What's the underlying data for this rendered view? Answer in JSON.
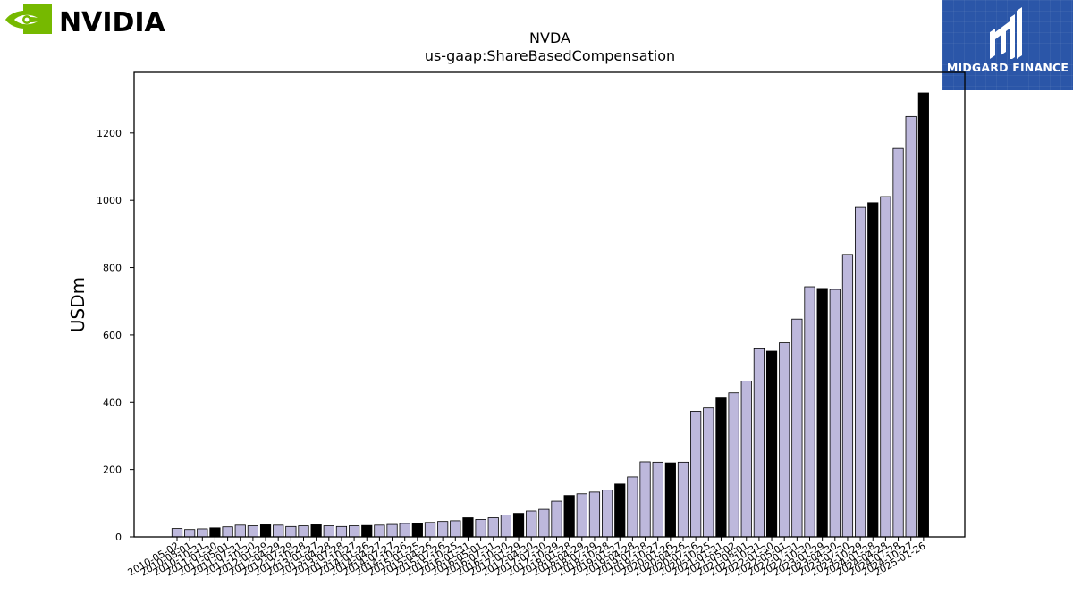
{
  "header": {
    "left_logo": "NVIDIA",
    "right_logo": "MIDGARD FINANCE"
  },
  "colors": {
    "bar_default": "#bdb8dc",
    "bar_highlight": "#000000",
    "nvidia_green": "#76b900",
    "midgard_blue": "#2b56a8"
  },
  "chart_data": {
    "type": "bar",
    "title": "NVDA",
    "subtitle": "us-gaap:ShareBasedCompensation",
    "xlabel": "",
    "ylabel": "USDm",
    "ylim": [
      0,
      1380
    ],
    "yticks": [
      0,
      200,
      400,
      600,
      800,
      1000,
      1200
    ],
    "categories": [
      "2010-05-02",
      "2010-08-01",
      "2010-10-31",
      "2011-01-30",
      "2011-05-01",
      "2011-07-31",
      "2011-10-30",
      "2012-01-29",
      "2012-04-29",
      "2012-07-29",
      "2012-10-28",
      "2013-01-27",
      "2013-04-28",
      "2013-07-28",
      "2013-10-27",
      "2014-01-26",
      "2014-04-27",
      "2014-07-27",
      "2014-10-26",
      "2015-01-25",
      "2015-04-26",
      "2015-07-26",
      "2015-10-25",
      "2016-01-31",
      "2016-05-01",
      "2016-07-31",
      "2016-10-30",
      "2017-01-29",
      "2017-04-30",
      "2017-07-30",
      "2017-10-29",
      "2018-01-28",
      "2018-04-29",
      "2018-07-29",
      "2018-10-28",
      "2019-01-27",
      "2019-04-28",
      "2019-07-28",
      "2019-10-27",
      "2020-01-26",
      "2020-04-26",
      "2020-07-26",
      "2020-10-25",
      "2021-01-31",
      "2021-05-02",
      "2021-08-01",
      "2021-10-31",
      "2022-01-30",
      "2022-05-01",
      "2022-07-31",
      "2022-10-30",
      "2023-01-29",
      "2023-04-30",
      "2023-07-30",
      "2023-10-29",
      "2024-01-28",
      "2024-04-28",
      "2024-07-28",
      "2024-10-27",
      "2025-01-26"
    ],
    "values": [
      25,
      22,
      24,
      27,
      30,
      35,
      33,
      36,
      35,
      31,
      33,
      36,
      33,
      31,
      33,
      34,
      35,
      37,
      40,
      41,
      43,
      46,
      48,
      57,
      52,
      57,
      65,
      70,
      77,
      82,
      106,
      123,
      128,
      133,
      139,
      157,
      178,
      223,
      222,
      220,
      222,
      373,
      383,
      415,
      428,
      463,
      559,
      552,
      577,
      647,
      743,
      738,
      735,
      839,
      979,
      993,
      1011,
      1154,
      1249,
      1319
    ],
    "highlight": [
      false,
      false,
      false,
      true,
      false,
      false,
      false,
      true,
      false,
      false,
      false,
      true,
      false,
      false,
      false,
      true,
      false,
      false,
      false,
      true,
      false,
      false,
      false,
      true,
      false,
      false,
      false,
      true,
      false,
      false,
      false,
      true,
      false,
      false,
      false,
      true,
      false,
      false,
      false,
      true,
      false,
      false,
      false,
      true,
      false,
      false,
      false,
      true,
      false,
      false,
      false,
      true,
      false,
      false,
      false,
      true,
      false,
      false,
      false,
      true
    ]
  }
}
